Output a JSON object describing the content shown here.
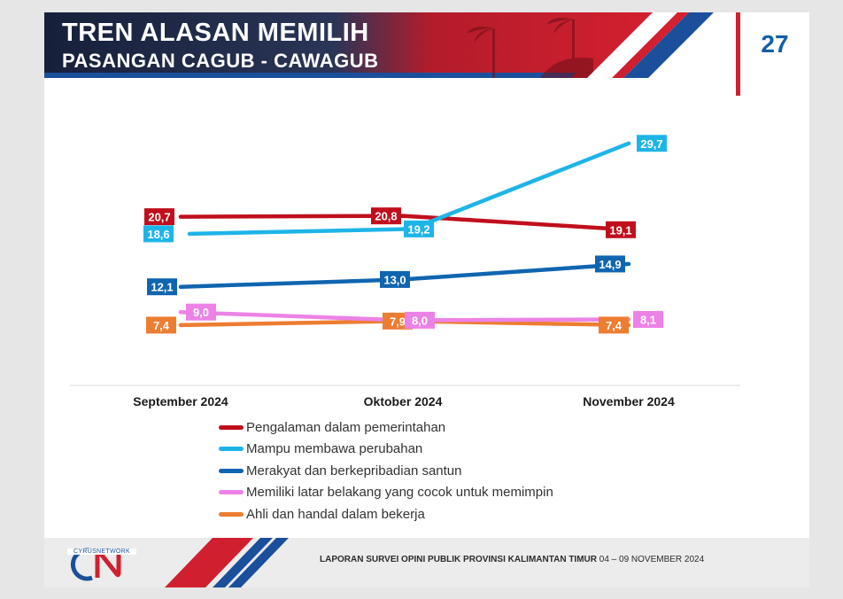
{
  "header": {
    "title": "TREN ALASAN MEMILIH",
    "subtitle": "PASANGAN CAGUB - CAWAGUB",
    "page_number": "27"
  },
  "colors": {
    "brand_red": "#d0202f",
    "brand_blue": "#1a4f9c",
    "header_dark": "#1b2f5a"
  },
  "chart_data": {
    "type": "line",
    "categories": [
      "September 2024",
      "Oktober 2024",
      "November 2024"
    ],
    "series": [
      {
        "name": "Pengalaman dalam pemerintahan",
        "color": "#c00f1c",
        "values": [
          20.7,
          20.8,
          19.1
        ],
        "labels": [
          "20,7",
          "20,8",
          "19,1"
        ]
      },
      {
        "name": "Mampu membawa perubahan",
        "color": "#1eb4e8",
        "values": [
          18.6,
          19.2,
          29.7
        ],
        "labels": [
          "18,6",
          "19,2",
          "29,7"
        ]
      },
      {
        "name": "Merakyat dan berkepribadian santun",
        "color": "#1065b0",
        "values": [
          12.1,
          13.0,
          14.9
        ],
        "labels": [
          "12,1",
          "13,0",
          "14,9"
        ]
      },
      {
        "name": "Memiliki latar belakang yang cocok untuk memimpin",
        "color": "#ec82e6",
        "values": [
          9.0,
          8.0,
          8.1
        ],
        "labels": [
          "9,0",
          "8,0",
          "8,1"
        ]
      },
      {
        "name": "Ahli dan handal dalam bekerja",
        "color": "#ed7d31",
        "values": [
          7.4,
          7.9,
          7.4
        ],
        "labels": [
          "7,4",
          "7,9",
          "7,4"
        ]
      }
    ],
    "ylim": [
      0,
      35
    ],
    "grid": false,
    "legend_position": "bottom"
  },
  "footer": {
    "report_title": "LAPORAN SURVEI OPINI PUBLIK PROVINSI KALIMANTAN TIMUR",
    "date_range": "04 – 09 NOVEMBER 2024",
    "logo_text": "CYRUSNETWORK"
  }
}
